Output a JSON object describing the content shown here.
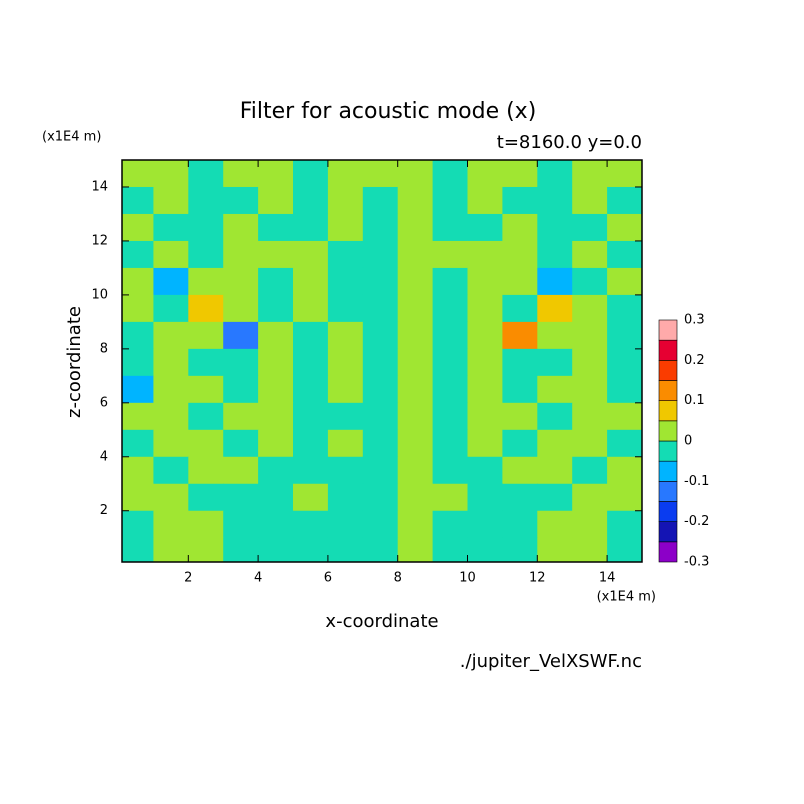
{
  "chart_data": {
    "type": "contour",
    "title": "Filter for acoustic mode (x)",
    "subtitle": "t=8160.0 y=0.0",
    "y_unit": "(x1E4 m)",
    "x_unit": "(x1E4 m)",
    "xlabel": "x-coordinate",
    "ylabel": "z-coordinate",
    "source": "./jupiter_VelXSWF.nc",
    "xlim": [
      0.1,
      15
    ],
    "ylim": [
      0.1,
      15
    ],
    "xticks": [
      2,
      4,
      6,
      8,
      10,
      12,
      14
    ],
    "yticks": [
      2,
      4,
      6,
      8,
      10,
      12,
      14
    ],
    "x": [
      0.5,
      1.5,
      2.5,
      3.5,
      4.5,
      5.5,
      6.5,
      7.5,
      8.5,
      9.5,
      10.5,
      11.5,
      12.5,
      13.5,
      14.5
    ],
    "z": [
      14.5,
      13.5,
      12.5,
      11.5,
      10.5,
      9.5,
      8.5,
      7.5,
      6.5,
      5.5,
      4.5,
      3.5,
      2.5,
      1.5,
      0.5
    ],
    "values": [
      [
        0.02,
        0.02,
        -0.02,
        0.02,
        0.02,
        -0.02,
        0.02,
        0.02,
        0.02,
        -0.02,
        0.02,
        0.02,
        -0.02,
        0.02,
        0.02
      ],
      [
        -0.02,
        0.02,
        -0.02,
        -0.02,
        0.02,
        -0.02,
        0.02,
        -0.02,
        0.02,
        -0.02,
        0.02,
        -0.02,
        -0.02,
        0.02,
        -0.02
      ],
      [
        0.02,
        -0.02,
        -0.02,
        0.02,
        -0.02,
        -0.02,
        0.02,
        -0.02,
        0.02,
        -0.02,
        -0.02,
        0.02,
        -0.02,
        -0.02,
        0.02
      ],
      [
        -0.02,
        0.02,
        -0.02,
        0.02,
        0.02,
        0.02,
        -0.02,
        -0.02,
        0.02,
        0.02,
        0.02,
        0.02,
        -0.02,
        0.02,
        -0.02
      ],
      [
        0.02,
        -0.07,
        0.02,
        0.02,
        -0.02,
        0.02,
        -0.02,
        -0.02,
        0.02,
        -0.02,
        0.02,
        0.02,
        -0.07,
        -0.02,
        0.02
      ],
      [
        0.02,
        -0.02,
        0.08,
        0.02,
        -0.02,
        0.02,
        -0.02,
        -0.02,
        0.02,
        -0.02,
        0.02,
        -0.02,
        0.08,
        0.02,
        -0.02
      ],
      [
        -0.02,
        0.02,
        0.02,
        -0.12,
        0.02,
        -0.02,
        0.02,
        -0.02,
        0.02,
        -0.02,
        0.02,
        0.12,
        0.02,
        0.02,
        -0.02
      ],
      [
        -0.02,
        0.02,
        -0.02,
        -0.02,
        0.02,
        -0.02,
        0.02,
        -0.02,
        0.02,
        -0.02,
        0.02,
        -0.02,
        -0.02,
        0.02,
        -0.02
      ],
      [
        -0.07,
        0.02,
        0.02,
        -0.02,
        0.02,
        -0.02,
        0.02,
        -0.02,
        0.02,
        -0.02,
        0.02,
        -0.02,
        0.02,
        0.02,
        -0.02
      ],
      [
        0.02,
        0.02,
        -0.02,
        0.02,
        0.02,
        -0.02,
        -0.02,
        -0.02,
        0.02,
        -0.02,
        0.02,
        0.02,
        -0.02,
        0.02,
        0.02
      ],
      [
        -0.02,
        0.02,
        0.02,
        -0.02,
        0.02,
        -0.02,
        0.02,
        -0.02,
        0.02,
        -0.02,
        0.02,
        -0.02,
        0.02,
        0.02,
        -0.02
      ],
      [
        0.02,
        -0.02,
        0.02,
        0.02,
        -0.02,
        -0.02,
        -0.02,
        -0.02,
        0.02,
        -0.02,
        -0.02,
        0.02,
        0.02,
        -0.02,
        0.02
      ],
      [
        0.02,
        0.02,
        -0.02,
        -0.02,
        -0.02,
        0.02,
        -0.02,
        -0.02,
        0.02,
        0.02,
        -0.02,
        -0.02,
        -0.02,
        0.02,
        0.02
      ],
      [
        -0.02,
        0.02,
        0.02,
        -0.02,
        -0.02,
        -0.02,
        -0.02,
        -0.02,
        0.02,
        -0.02,
        -0.02,
        -0.02,
        0.02,
        0.02,
        -0.02
      ],
      [
        -0.02,
        0.02,
        0.02,
        -0.02,
        -0.02,
        -0.02,
        -0.02,
        -0.02,
        0.02,
        -0.02,
        -0.02,
        -0.02,
        0.02,
        0.02,
        -0.02
      ]
    ],
    "levels": [
      -0.3,
      -0.25,
      -0.2,
      -0.15,
      -0.1,
      -0.05,
      0,
      0.05,
      0.1,
      0.15,
      0.2,
      0.25,
      0.3
    ],
    "colors": [
      "#8c00c8",
      "#1414b4",
      "#0a3cf0",
      "#2878ff",
      "#00b4ff",
      "#14dcb4",
      "#a0e632",
      "#f0c800",
      "#fa8c00",
      "#fa3c00",
      "#e60032",
      "#ffaaaa"
    ],
    "level_ticks": [
      0.3,
      0.2,
      0.1,
      0,
      -0.1,
      -0.2,
      -0.3
    ]
  }
}
